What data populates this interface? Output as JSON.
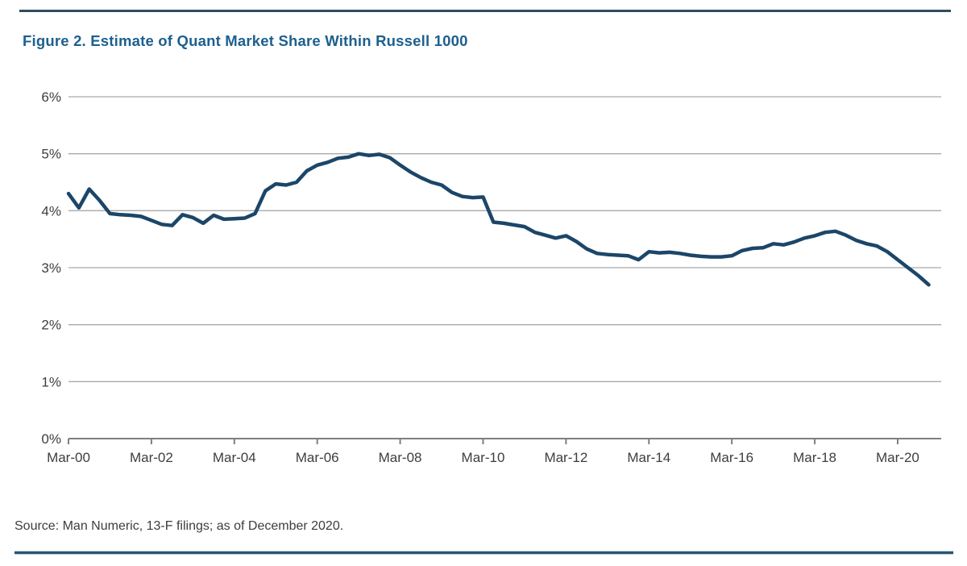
{
  "figure": {
    "title": "Figure 2. Estimate of Quant Market Share Within Russell 1000",
    "source": "Source: Man Numeric, 13-F filings; as of December 2020."
  },
  "colors": {
    "title": "#1d608f",
    "series_line": "#1b4669",
    "gridline": "#a9a9a9",
    "axis": "#7f7f7f",
    "tick_label": "#3e3e3e",
    "rule": "#2e4d5f"
  },
  "chart_data": {
    "type": "line",
    "title": "Estimate of Quant Market Share Within Russell 1000",
    "xlabel": "",
    "ylabel": "",
    "period_start": "Mar-00",
    "period_end": "Dec-20",
    "period_frequency": "quarterly",
    "x_tick_labels": [
      "Mar-00",
      "Mar-02",
      "Mar-04",
      "Mar-06",
      "Mar-08",
      "Mar-10",
      "Mar-12",
      "Mar-14",
      "Mar-16",
      "Mar-18",
      "Mar-20"
    ],
    "y_tick_labels": [
      "0%",
      "1%",
      "2%",
      "3%",
      "4%",
      "5%",
      "6%"
    ],
    "ylim": [
      0,
      6
    ],
    "grid": "horizontal",
    "legend": "none",
    "series": [
      {
        "name": "Quant market share (%)",
        "values": [
          4.3,
          4.05,
          4.38,
          4.18,
          3.95,
          3.93,
          3.92,
          3.9,
          3.83,
          3.76,
          3.74,
          3.93,
          3.88,
          3.78,
          3.92,
          3.85,
          3.86,
          3.87,
          3.95,
          4.35,
          4.47,
          4.45,
          4.5,
          4.7,
          4.8,
          4.85,
          4.92,
          4.94,
          5.0,
          4.97,
          4.99,
          4.93,
          4.8,
          4.68,
          4.58,
          4.5,
          4.45,
          4.32,
          4.25,
          4.23,
          4.24,
          3.8,
          3.78,
          3.75,
          3.72,
          3.62,
          3.57,
          3.52,
          3.56,
          3.46,
          3.33,
          3.25,
          3.23,
          3.22,
          3.21,
          3.14,
          3.28,
          3.26,
          3.27,
          3.25,
          3.22,
          3.2,
          3.19,
          3.19,
          3.21,
          3.3,
          3.34,
          3.35,
          3.42,
          3.4,
          3.45,
          3.52,
          3.56,
          3.62,
          3.64,
          3.57,
          3.48,
          3.42,
          3.38,
          3.28,
          3.14,
          3.0,
          2.86,
          2.7
        ]
      }
    ]
  }
}
